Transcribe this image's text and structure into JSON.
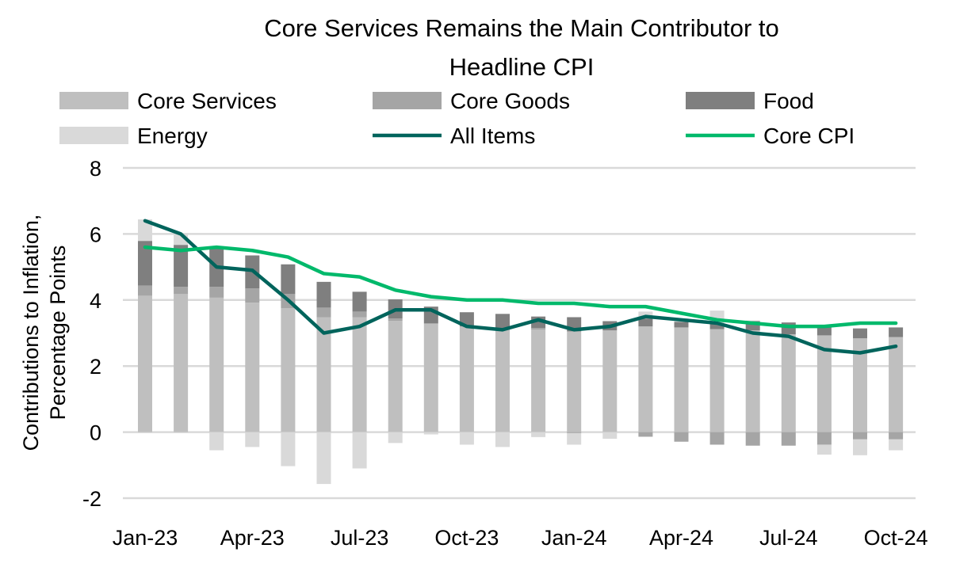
{
  "chart_data": {
    "type": "bar",
    "subtype": "stacked bar with lines",
    "title": "Core Services Remains the Main Contributor to Headline CPI",
    "title_lines": [
      "Core Services Remains the Main Contributor to",
      "Headline CPI"
    ],
    "xlabel": "",
    "ylabel_lines": [
      "Contributions to Inflation,",
      "Percentage Points"
    ],
    "ylim": [
      -2,
      8
    ],
    "yticks": [
      -2,
      0,
      2,
      4,
      6,
      8
    ],
    "grid": true,
    "legend_position": "top",
    "categories": [
      "Jan-23",
      "Feb-23",
      "Mar-23",
      "Apr-23",
      "May-23",
      "Jun-23",
      "Jul-23",
      "Aug-23",
      "Sep-23",
      "Oct-23",
      "Nov-23",
      "Dec-23",
      "Jan-24",
      "Feb-24",
      "Mar-24",
      "Apr-24",
      "May-24",
      "Jun-24",
      "Jul-24",
      "Aug-24",
      "Sep-24",
      "Oct-24"
    ],
    "xtick_labels": [
      "Jan-23",
      "Apr-23",
      "Jul-23",
      "Oct-23",
      "Jan-24",
      "Apr-24",
      "Jul-24",
      "Oct-24"
    ],
    "bar_series": [
      {
        "name": "Core Services",
        "color": "#bfbfbf",
        "values": [
          4.13,
          4.18,
          4.07,
          3.92,
          3.75,
          3.48,
          3.48,
          3.37,
          3.29,
          3.2,
          3.1,
          3.1,
          3.05,
          3.08,
          3.2,
          3.17,
          3.12,
          3.08,
          2.96,
          2.93,
          2.84,
          2.88
        ]
      },
      {
        "name": "Core Goods",
        "color": "#a5a5a5",
        "values": [
          0.31,
          0.22,
          0.33,
          0.43,
          0.43,
          0.29,
          0.17,
          0.07,
          0,
          0,
          0,
          0.05,
          -0.03,
          0,
          -0.14,
          -0.29,
          -0.38,
          -0.41,
          -0.41,
          -0.38,
          -0.22,
          -0.22
        ]
      },
      {
        "name": "Food",
        "color": "#7f7f7f",
        "values": [
          1.35,
          1.27,
          1.15,
          1.0,
          0.9,
          0.78,
          0.6,
          0.58,
          0.51,
          0.43,
          0.48,
          0.35,
          0.43,
          0.28,
          0.24,
          0.17,
          0.17,
          0.28,
          0.36,
          0.24,
          0.3,
          0.29
        ]
      },
      {
        "name": "Energy",
        "color": "#d9d9d9",
        "values": [
          0.65,
          0.33,
          -0.55,
          -0.45,
          -1.03,
          -1.57,
          -1.1,
          -0.33,
          -0.07,
          -0.38,
          -0.45,
          -0.15,
          -0.35,
          -0.2,
          0.21,
          0.1,
          0.39,
          0.02,
          0,
          -0.3,
          -0.48,
          -0.33
        ]
      }
    ],
    "line_series": [
      {
        "name": "All Items",
        "color": "#00645c",
        "values": [
          6.4,
          6.0,
          5.0,
          4.9,
          4.0,
          3.0,
          3.2,
          3.7,
          3.7,
          3.2,
          3.1,
          3.4,
          3.1,
          3.2,
          3.5,
          3.4,
          3.3,
          3.0,
          2.9,
          2.5,
          2.4,
          2.6
        ]
      },
      {
        "name": "Core CPI",
        "color": "#00b96b",
        "values": [
          5.6,
          5.5,
          5.6,
          5.5,
          5.3,
          4.8,
          4.7,
          4.3,
          4.1,
          4.0,
          4.0,
          3.9,
          3.9,
          3.8,
          3.8,
          3.6,
          3.4,
          3.3,
          3.2,
          3.2,
          3.3,
          3.3
        ]
      }
    ]
  }
}
